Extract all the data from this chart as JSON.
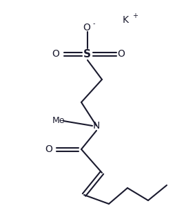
{
  "background_color": "#ffffff",
  "line_color": "#1a1a2e",
  "line_width": 1.5,
  "figsize": [
    2.54,
    3.14
  ],
  "dpi": 100,
  "K_text": "K",
  "K_sup": "+",
  "O_minus_text": "O",
  "O_minus_sup": "-",
  "S_text": "S",
  "O_text": "O",
  "N_text": "N",
  "Me_text": "Me"
}
